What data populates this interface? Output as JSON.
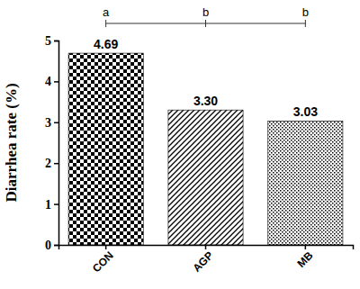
{
  "chart_data": {
    "type": "bar",
    "categories": [
      "CON",
      "AGP",
      "MB"
    ],
    "values": [
      4.69,
      3.3,
      3.03
    ],
    "value_labels": [
      "4.69",
      "3.30",
      "3.03"
    ],
    "data_labels": true,
    "annotations": [
      "a",
      "b",
      "b"
    ],
    "ylabel": "Diarrhea rate (%)",
    "ylim": [
      0,
      5
    ],
    "yticks": [
      0,
      1,
      2,
      3,
      4,
      5
    ],
    "color": "#000000",
    "grid": false
  }
}
